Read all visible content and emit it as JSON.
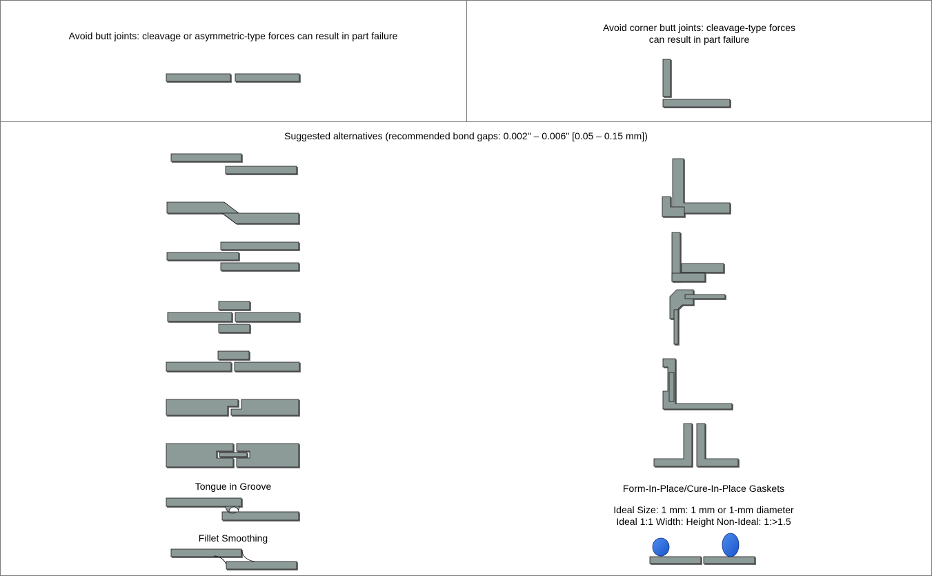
{
  "top_left": {
    "caption": "Avoid butt joints: cleavage or asymmetric-type forces can result in part failure"
  },
  "top_right": {
    "caption_line1": "Avoid corner butt joints: cleavage-type forces",
    "caption_line2": "can result in part failure"
  },
  "bottom": {
    "heading": "Suggested alternatives (recommended bond gaps: 0.002\" – 0.006\" [0.05 – 0.15 mm])",
    "left_labels": {
      "tongue_in_groove": "Tongue in Groove",
      "fillet_smoothing": "Fillet Smoothing"
    },
    "right_labels": {
      "gasket_title": "Form-In-Place/Cure-In-Place Gaskets",
      "ideal_size": "Ideal Size:  1 mm: 1 mm or 1-mm diameter",
      "ideal_ratio": "Ideal 1:1 Width: Height  Non-Ideal: 1:>1.5"
    }
  },
  "colors": {
    "part_fill": "#8c9a98",
    "part_stroke": "#1a1a1a",
    "bead_fill": "#2266dd",
    "border": "#7a7a7a"
  }
}
